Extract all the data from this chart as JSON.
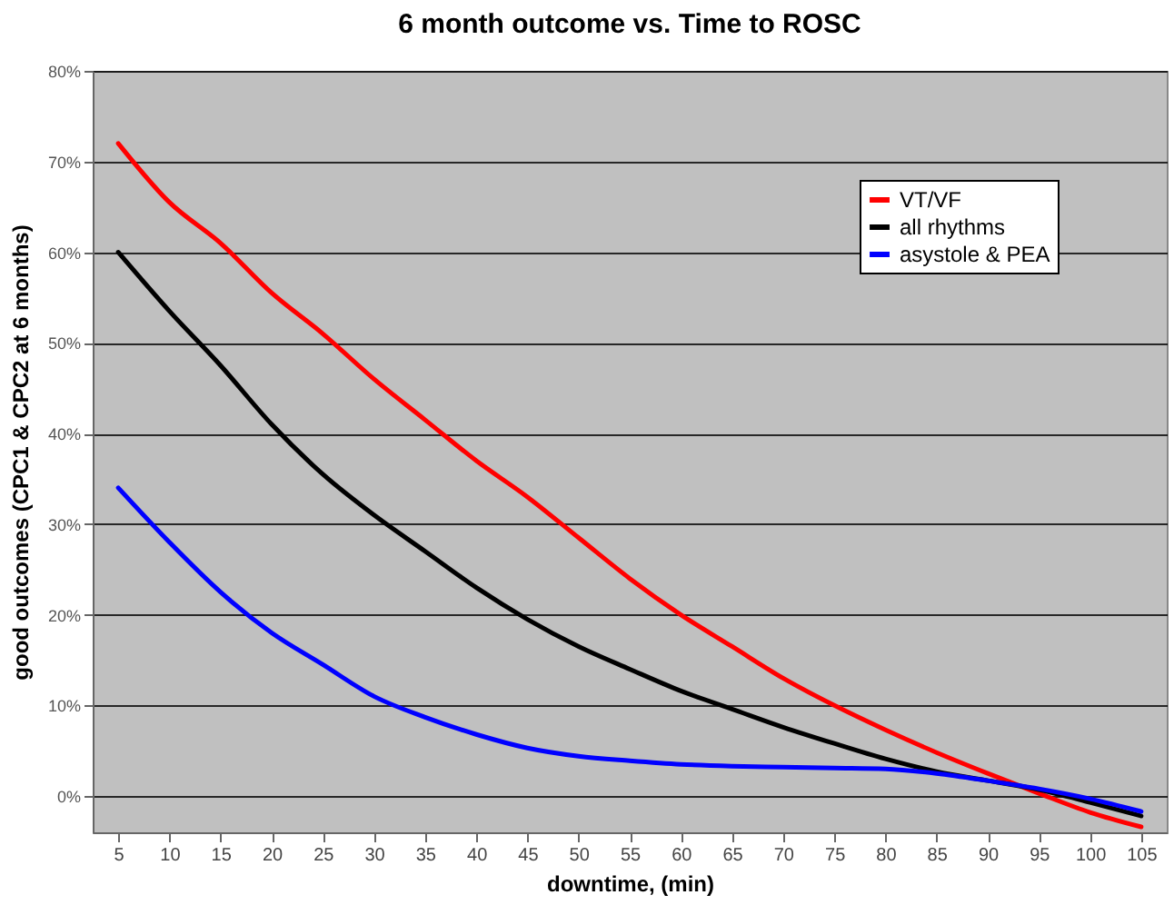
{
  "chart_data": {
    "type": "line",
    "title": "6 month outcome vs. Time to ROSC",
    "xlabel": "downtime, (min)",
    "ylabel": "good outcomes (CPC1 & CPC2 at 6 months)",
    "x": [
      5,
      10,
      15,
      20,
      25,
      30,
      35,
      40,
      45,
      50,
      55,
      60,
      65,
      70,
      75,
      80,
      85,
      90,
      95,
      100,
      105
    ],
    "series": [
      {
        "name": "VT/VF",
        "color": "#ff0000",
        "values": [
          72,
          65.5,
          61,
          55.5,
          51,
          46,
          41.5,
          37,
          33,
          28.5,
          24,
          20,
          16.5,
          13,
          10,
          7.3,
          4.8,
          2.5,
          0.3,
          -1.8,
          -3.4
        ]
      },
      {
        "name": "all rhythms",
        "color": "#000000",
        "values": [
          60,
          53.5,
          47.5,
          41,
          35.5,
          31,
          27,
          23,
          19.5,
          16.5,
          14,
          11.6,
          9.6,
          7.6,
          5.8,
          4.1,
          2.7,
          1.7,
          0.7,
          -0.7,
          -2.2
        ]
      },
      {
        "name": "asystole & PEA",
        "color": "#0000ff",
        "values": [
          34,
          28,
          22.5,
          18,
          14.5,
          11,
          8.7,
          6.8,
          5.3,
          4.4,
          3.9,
          3.5,
          3.3,
          3.2,
          3.1,
          3,
          2.5,
          1.7,
          0.8,
          -0.3,
          -1.7
        ]
      }
    ],
    "xlim": [
      2.5,
      107.5
    ],
    "xticks": [
      5,
      10,
      15,
      20,
      25,
      30,
      35,
      40,
      45,
      50,
      55,
      60,
      65,
      70,
      75,
      80,
      85,
      90,
      95,
      100,
      105
    ],
    "ylim": [
      -4,
      80
    ],
    "yticks": [
      {
        "value": 0,
        "label": "0%"
      },
      {
        "value": 10,
        "label": "10%"
      },
      {
        "value": 20,
        "label": "20%"
      },
      {
        "value": 30,
        "label": "30%"
      },
      {
        "value": 40,
        "label": "40%"
      },
      {
        "value": 50,
        "label": "50%"
      },
      {
        "value": 60,
        "label": "60%"
      },
      {
        "value": 70,
        "label": "70%"
      },
      {
        "value": 80,
        "label": "80%"
      }
    ],
    "grid": "y",
    "legend": "top right",
    "marker": "none",
    "line_style": "solid"
  }
}
